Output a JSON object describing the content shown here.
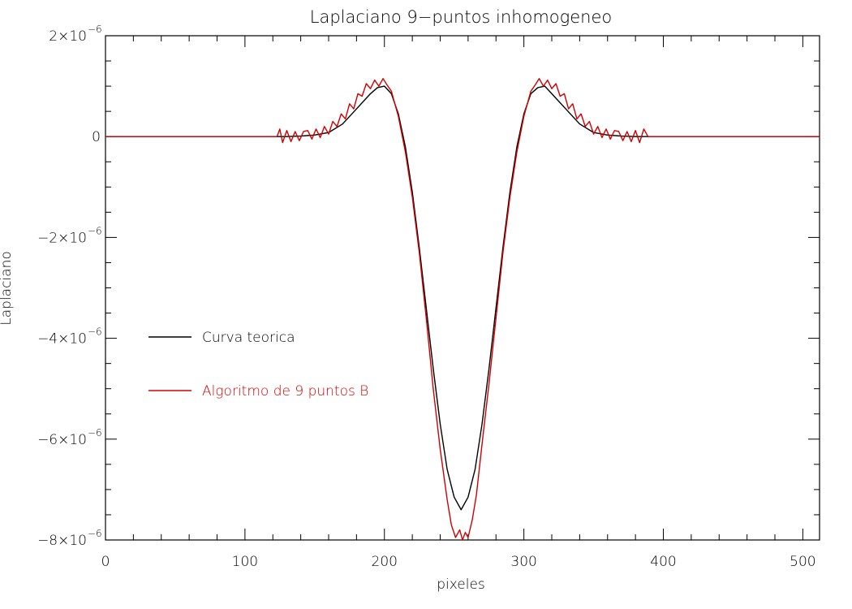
{
  "chart_data": {
    "type": "line",
    "title": "Laplaciano 9−puntos inhomogeneo",
    "xlabel": "pixeles",
    "ylabel": "Laplaciano",
    "xlim": [
      0,
      512
    ],
    "ylim": [
      -8e-06,
      2e-06
    ],
    "xticks": [
      0,
      100,
      200,
      300,
      400,
      500
    ],
    "xtick_labels": [
      "0",
      "100",
      "200",
      "300",
      "400",
      "500"
    ],
    "yticks": [
      2e-06,
      0,
      -2e-06,
      -4e-06,
      -6e-06,
      -8e-06
    ],
    "ytick_labels": [
      {
        "mant": "2×10",
        "exp": "−6"
      },
      {
        "mant": "0",
        "exp": ""
      },
      {
        "mant": "−2×10",
        "exp": "−6"
      },
      {
        "mant": "−4×10",
        "exp": "−6"
      },
      {
        "mant": "−6×10",
        "exp": "−6"
      },
      {
        "mant": "−8×10",
        "exp": "−6"
      }
    ],
    "grid": false,
    "legend_position": "left-middle",
    "series": [
      {
        "name": "Curva teorica",
        "color": "#000000",
        "x": [
          0,
          100,
          120,
          130,
          140,
          150,
          160,
          170,
          180,
          190,
          195,
          200,
          205,
          210,
          215,
          220,
          225,
          230,
          235,
          240,
          245,
          250,
          255,
          260,
          265,
          270,
          275,
          280,
          285,
          290,
          295,
          300,
          305,
          310,
          315,
          320,
          330,
          340,
          350,
          360,
          370,
          380,
          390,
          400,
          512
        ],
        "y": [
          0,
          0,
          0,
          0,
          1e-08,
          3e-08,
          8e-08,
          2.5e-07,
          5.5e-07,
          8.5e-07,
          9.7e-07,
          1e-06,
          8.5e-07,
          4.5e-07,
          -2e-07,
          -1.1e-06,
          -2.2e-06,
          -3.4e-06,
          -4.6e-06,
          -5.7e-06,
          -6.6e-06,
          -7.15e-06,
          -7.4e-06,
          -7.15e-06,
          -6.6e-06,
          -5.7e-06,
          -4.6e-06,
          -3.4e-06,
          -2.2e-06,
          -1.1e-06,
          -2e-07,
          4.5e-07,
          8.5e-07,
          9.7e-07,
          1e-06,
          8.5e-07,
          5.5e-07,
          2.5e-07,
          8e-08,
          3e-08,
          1e-08,
          0,
          0,
          0,
          0
        ]
      },
      {
        "name": "Algoritmo de 9 puntos B",
        "color": "#d00000",
        "x": [
          0,
          123,
          125,
          127,
          130,
          133,
          136,
          139,
          142,
          145,
          148,
          151,
          154,
          157,
          160,
          163,
          166,
          169,
          172,
          175,
          178,
          181,
          184,
          187,
          190,
          193,
          196,
          199,
          202,
          205,
          210,
          215,
          220,
          225,
          230,
          235,
          240,
          245,
          248,
          251,
          254,
          256,
          258,
          260,
          263,
          266,
          270,
          275,
          280,
          285,
          290,
          295,
          300,
          305,
          308,
          311,
          314,
          317,
          320,
          323,
          326,
          329,
          332,
          335,
          338,
          341,
          344,
          347,
          350,
          353,
          356,
          359,
          362,
          365,
          368,
          371,
          374,
          377,
          380,
          383,
          386,
          389,
          512
        ],
        "y": [
          0,
          0,
          1.5e-07,
          -1.2e-07,
          1.2e-07,
          -1e-07,
          1e-07,
          -8e-08,
          1e-07,
          1.2e-07,
          -5e-08,
          1.5e-07,
          -2e-08,
          2e-07,
          5e-08,
          3e-07,
          2e-07,
          4.5e-07,
          3.5e-07,
          6.5e-07,
          5.5e-07,
          8.5e-07,
          8e-07,
          1.05e-06,
          9.5e-07,
          1.12e-06,
          1e-06,
          1.15e-06,
          1.02e-06,
          9e-07,
          4e-07,
          -3e-07,
          -1.2e-06,
          -2.3e-06,
          -3.6e-06,
          -5e-06,
          -6.2e-06,
          -7.2e-06,
          -7.7e-06,
          -7.95e-06,
          -7.8e-06,
          -8e-06,
          -7.85e-06,
          -7.95e-06,
          -7.6e-06,
          -7.1e-06,
          -6.1e-06,
          -4.9e-06,
          -3.6e-06,
          -2.3e-06,
          -1.2e-06,
          -3e-07,
          4e-07,
          9e-07,
          1.02e-06,
          1.15e-06,
          1e-06,
          1.12e-06,
          9.5e-07,
          1.05e-06,
          8e-07,
          8.5e-07,
          5.5e-07,
          6.5e-07,
          3.5e-07,
          4.5e-07,
          2e-07,
          3e-07,
          5e-08,
          2e-07,
          -2e-08,
          1.5e-07,
          -5e-08,
          1.2e-07,
          1e-07,
          -8e-08,
          1e-07,
          -1e-07,
          1.2e-07,
          -1.2e-07,
          1.5e-07,
          0,
          0
        ]
      }
    ]
  }
}
